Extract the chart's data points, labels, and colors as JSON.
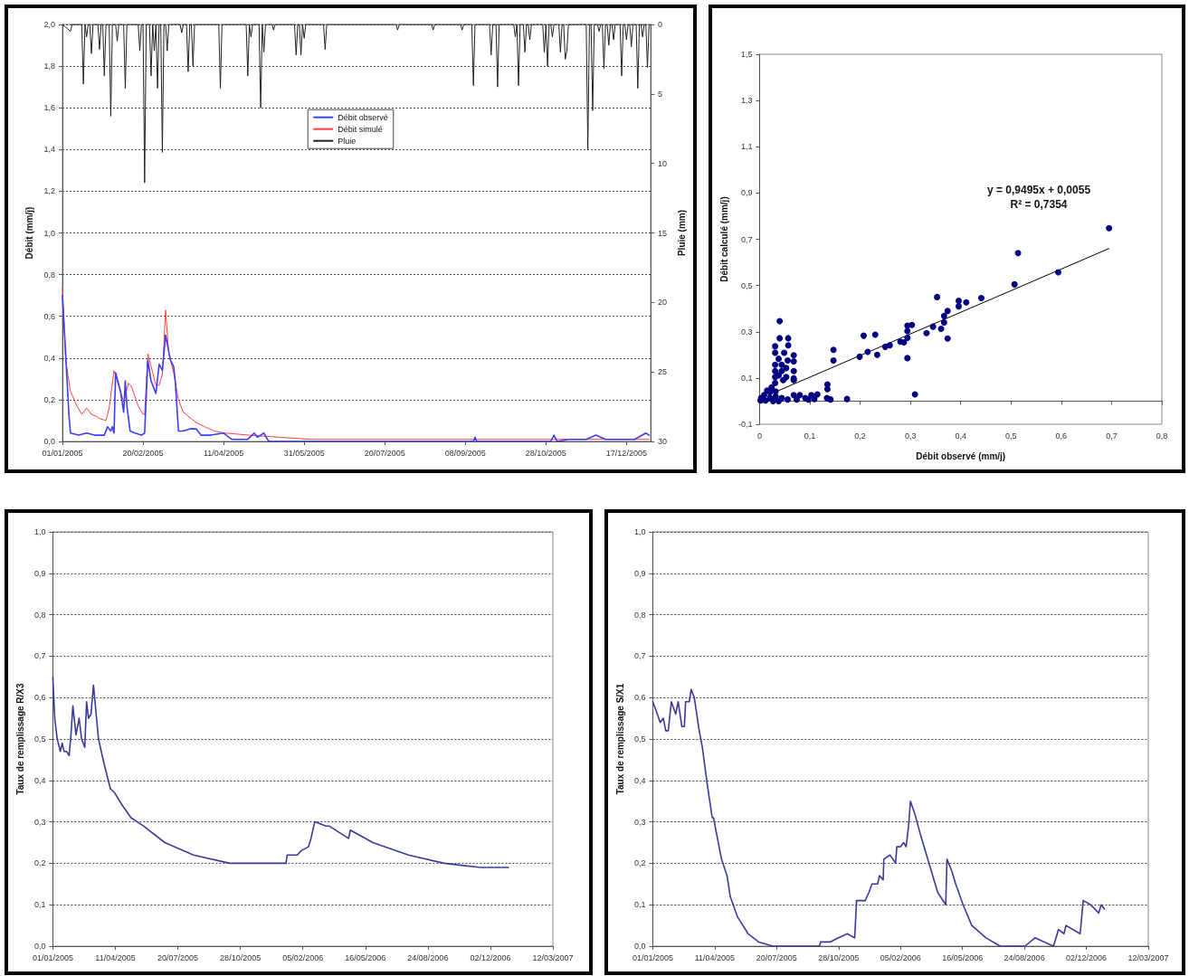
{
  "chart_data": [
    {
      "type": "line",
      "xlabel": null,
      "ylabel": "Débit (mm/j)",
      "y2label": "Pluie (mm)",
      "xlim": [
        "2005-01-01",
        "2006-01-01"
      ],
      "xticks": [
        {
          "value": "2005-01-01",
          "label": "01/01/2005"
        },
        {
          "value": "2005-02-20",
          "label": "20/02/2005"
        },
        {
          "value": "2005-04-11",
          "label": "11/04/2005"
        },
        {
          "value": "2005-05-31",
          "label": "31/05/2005"
        },
        {
          "value": "2005-07-20",
          "label": "20/07/2005"
        },
        {
          "value": "2005-09-08",
          "label": "08/09/2005"
        },
        {
          "value": "2005-10-28",
          "label": "28/10/2005"
        },
        {
          "value": "2005-12-17",
          "label": "17/12/2005"
        }
      ],
      "ylim": [
        0,
        2
      ],
      "yticks": [
        {
          "value": 0,
          "label": "0,0"
        },
        {
          "value": 0.2,
          "label": "0,2"
        },
        {
          "value": 0.4,
          "label": "0,4"
        },
        {
          "value": 0.6,
          "label": "0,6"
        },
        {
          "value": 0.8,
          "label": "0,8"
        },
        {
          "value": 1,
          "label": "1,0"
        },
        {
          "value": 1.2,
          "label": "1,2"
        },
        {
          "value": 1.4,
          "label": "1,4"
        },
        {
          "value": 1.6,
          "label": "1,6"
        },
        {
          "value": 1.8,
          "label": "1,8"
        },
        {
          "value": 2,
          "label": "2,0"
        }
      ],
      "y2lim": [
        30,
        0
      ],
      "y2ticks": [
        0,
        5,
        10,
        15,
        20,
        25,
        30
      ],
      "grid": "y",
      "legend": "top",
      "marker": "none",
      "series": [
        {
          "name": "Débit observé",
          "color": "#3c3cff",
          "x": [
            "2005-01-01",
            "2005-01-03",
            "2005-01-05",
            "2005-01-06",
            "2005-01-11",
            "2005-01-16",
            "2005-01-21",
            "2005-01-27",
            "2005-01-29",
            "2005-01-31",
            "2005-02-01",
            "2005-02-02",
            "2005-02-03",
            "2005-02-06",
            "2005-02-08",
            "2005-02-09",
            "2005-02-10",
            "2005-02-12",
            "2005-02-15",
            "2005-02-19",
            "2005-02-21",
            "2005-02-23",
            "2005-02-25",
            "2005-02-28",
            "2005-03-02",
            "2005-03-04",
            "2005-03-06",
            "2005-03-09",
            "2005-03-11",
            "2005-03-12",
            "2005-03-14",
            "2005-03-17",
            "2005-03-21",
            "2005-03-25",
            "2005-03-28",
            "2005-04-03",
            "2005-04-11",
            "2005-04-16",
            "2005-04-26",
            "2005-04-30",
            "2005-05-02",
            "2005-05-06",
            "2005-05-09",
            "2005-09-13",
            "2005-09-14",
            "2005-09-15",
            "2005-10-31",
            "2005-11-02",
            "2005-11-04",
            "2005-11-11",
            "2005-11-22",
            "2005-11-28",
            "2005-12-04",
            "2005-12-22",
            "2005-12-29",
            "2005-12-31"
          ],
          "values": [
            0.7,
            0.42,
            0.13,
            0.04,
            0.03,
            0.04,
            0.03,
            0.03,
            0.07,
            0.05,
            0.07,
            0.04,
            0.33,
            0.24,
            0.14,
            0.29,
            0.17,
            0.05,
            0.04,
            0.03,
            0.04,
            0.39,
            0.29,
            0.23,
            0.37,
            0.34,
            0.51,
            0.39,
            0.36,
            0.29,
            0.05,
            0.05,
            0.06,
            0.06,
            0.03,
            0.03,
            0.04,
            0.01,
            0.01,
            0.04,
            0.02,
            0.04,
            0,
            0,
            0.02,
            0,
            0,
            0.03,
            0,
            0.01,
            0.01,
            0.03,
            0.01,
            0.01,
            0.04,
            0.03
          ]
        },
        {
          "name": "Débit simulé",
          "color": "#ff4040",
          "x": [
            "2005-01-01",
            "2005-01-03",
            "2005-01-06",
            "2005-01-10",
            "2005-01-13",
            "2005-01-16",
            "2005-01-19",
            "2005-01-22",
            "2005-01-24",
            "2005-01-28",
            "2005-01-30",
            "2005-02-02",
            "2005-02-08",
            "2005-02-11",
            "2005-02-13",
            "2005-02-17",
            "2005-02-20",
            "2005-02-21",
            "2005-02-23",
            "2005-02-26",
            "2005-02-28",
            "2005-03-02",
            "2005-03-04",
            "2005-03-06",
            "2005-03-08",
            "2005-03-11",
            "2005-03-14",
            "2005-03-17",
            "2005-03-25",
            "2005-04-05",
            "2005-04-12",
            "2005-04-27",
            "2005-05-16",
            "2005-06-04",
            "2005-07-20",
            "2005-12-31"
          ],
          "values": [
            0.74,
            0.39,
            0.24,
            0.17,
            0.13,
            0.16,
            0.13,
            0.12,
            0.11,
            0.1,
            0.16,
            0.34,
            0.19,
            0.28,
            0.26,
            0.17,
            0.13,
            0.13,
            0.42,
            0.33,
            0.27,
            0.27,
            0.32,
            0.63,
            0.42,
            0.33,
            0.2,
            0.14,
            0.09,
            0.05,
            0.04,
            0.03,
            0.02,
            0.01,
            0.01,
            0.01
          ]
        },
        {
          "name": "Pluie",
          "color": "#222222",
          "axis": "y2",
          "x": [
            "2005-01-01",
            "2005-01-06",
            "2005-01-07",
            "2005-01-13",
            "2005-01-14",
            "2005-01-15",
            "2005-01-16",
            "2005-01-17",
            "2005-01-18",
            "2005-01-19",
            "2005-01-20",
            "2005-01-23",
            "2005-01-24",
            "2005-01-25",
            "2005-01-26",
            "2005-01-27",
            "2005-01-28",
            "2005-01-30",
            "2005-01-31",
            "2005-02-01",
            "2005-02-03",
            "2005-02-04",
            "2005-02-05",
            "2005-02-08",
            "2005-02-09",
            "2005-02-10",
            "2005-02-17",
            "2005-02-18",
            "2005-02-19",
            "2005-02-20",
            "2005-02-21",
            "2005-02-22",
            "2005-02-24",
            "2005-02-25",
            "2005-02-26",
            "2005-02-27",
            "2005-02-28",
            "2005-03-01",
            "2005-03-02",
            "2005-03-03",
            "2005-03-04",
            "2005-03-05",
            "2005-03-06",
            "2005-03-07",
            "2005-03-08",
            "2005-03-15",
            "2005-03-16",
            "2005-03-17",
            "2005-03-19",
            "2005-03-20",
            "2005-03-21",
            "2005-03-22",
            "2005-03-23",
            "2005-03-24",
            "2005-04-08",
            "2005-04-09",
            "2005-04-10",
            "2005-04-25",
            "2005-04-26",
            "2005-04-27",
            "2005-04-28",
            "2005-04-29",
            "2005-05-03",
            "2005-05-04",
            "2005-05-05",
            "2005-05-06",
            "2005-05-07",
            "2005-05-11",
            "2005-05-12",
            "2005-05-13",
            "2005-05-25",
            "2005-05-26",
            "2005-05-27",
            "2005-05-28",
            "2005-05-29",
            "2005-05-30",
            "2005-05-31",
            "2005-06-01",
            "2005-06-12",
            "2005-06-13",
            "2005-06-14",
            "2005-07-27",
            "2005-07-28",
            "2005-07-29",
            "2005-08-18",
            "2005-08-19",
            "2005-08-20",
            "2005-09-05",
            "2005-09-06",
            "2005-09-07",
            "2005-09-12",
            "2005-09-13",
            "2005-09-14",
            "2005-09-23",
            "2005-09-24",
            "2005-09-25",
            "2005-09-27",
            "2005-09-28",
            "2005-09-29",
            "2005-10-08",
            "2005-10-09",
            "2005-10-10",
            "2005-10-11",
            "2005-10-12",
            "2005-10-14",
            "2005-10-15",
            "2005-10-16",
            "2005-10-17",
            "2005-10-18",
            "2005-10-19",
            "2005-10-26",
            "2005-10-27",
            "2005-10-28",
            "2005-10-29",
            "2005-10-30",
            "2005-10-31",
            "2005-11-01",
            "2005-11-02",
            "2005-11-05",
            "2005-11-06",
            "2005-11-07",
            "2005-11-08",
            "2005-11-09",
            "2005-11-10",
            "2005-11-11",
            "2005-11-22",
            "2005-11-23",
            "2005-11-24",
            "2005-11-25",
            "2005-11-26",
            "2005-11-27",
            "2005-11-29",
            "2005-11-30",
            "2005-12-01",
            "2005-12-02",
            "2005-12-03",
            "2005-12-04",
            "2005-12-05",
            "2005-12-06",
            "2005-12-07",
            "2005-12-08",
            "2005-12-09",
            "2005-12-10",
            "2005-12-13",
            "2005-12-14",
            "2005-12-15",
            "2005-12-16",
            "2005-12-17",
            "2005-12-18",
            "2005-12-19",
            "2005-12-20",
            "2005-12-21",
            "2005-12-23",
            "2005-12-24",
            "2005-12-25",
            "2005-12-26",
            "2005-12-27",
            "2005-12-28",
            "2005-12-29",
            "2005-12-30",
            "2005-12-31"
          ],
          "values": [
            0,
            0.5,
            0,
            0,
            4.3,
            0,
            0.9,
            0,
            0,
            2.1,
            0,
            0,
            1.8,
            0,
            0,
            3.7,
            0,
            0,
            6.6,
            0,
            0,
            1.2,
            0,
            0,
            4.6,
            0,
            0,
            1.9,
            0,
            0,
            11.4,
            0,
            0,
            3.7,
            0,
            1.9,
            0,
            4.6,
            0,
            0,
            9.2,
            0,
            0,
            1.9,
            0,
            0,
            0.6,
            0,
            0,
            3.4,
            0,
            0,
            3,
            0,
            0,
            4.6,
            0,
            0,
            3.7,
            0,
            0.9,
            0,
            0,
            6,
            0,
            2,
            0,
            0,
            0.4,
            0,
            0,
            2.2,
            0,
            0,
            2.2,
            0,
            1,
            0,
            0,
            1.8,
            0,
            0,
            0.4,
            0,
            0,
            0.4,
            0,
            0,
            0.4,
            0,
            0,
            4.4,
            0,
            0,
            2.2,
            0,
            0,
            4.5,
            0,
            0,
            0.9,
            0,
            4.4,
            0,
            0,
            2,
            0,
            0,
            1.1,
            0,
            0,
            2,
            0,
            3,
            0,
            0,
            0.9,
            0,
            0,
            2,
            0,
            0,
            2.5,
            1.9,
            0,
            0,
            9,
            0,
            0,
            6.2,
            0,
            0,
            0.5,
            0,
            0,
            3.2,
            0,
            0,
            1.5,
            0,
            0,
            1.1,
            0,
            0,
            3.7,
            0,
            0,
            1.1,
            0,
            0,
            1.6,
            0,
            0,
            4.6,
            0,
            0,
            0.9,
            0,
            0,
            3.1,
            0
          ]
        }
      ]
    },
    {
      "type": "scatter",
      "xlabel": "Débit observé (mm/j)",
      "ylabel": "Débit calculé (mm/j)",
      "annotations": [
        "y = 0,9495x + 0,0055",
        "R² = 0,7354"
      ],
      "xlim": [
        0,
        0.8
      ],
      "xticks": [
        0,
        {
          "value": 0.1,
          "label": "0,1"
        },
        {
          "value": 0.2,
          "label": "0,2"
        },
        {
          "value": 0.3,
          "label": "0,3"
        },
        {
          "value": 0.4,
          "label": "0,4"
        },
        {
          "value": 0.5,
          "label": "0,5"
        },
        {
          "value": 0.6,
          "label": "0,6"
        },
        {
          "value": 0.7,
          "label": "0,7"
        },
        {
          "value": 0.8,
          "label": "0,8"
        }
      ],
      "ylim": [
        -0.1,
        1.5
      ],
      "yticks": [
        {
          "value": -0.1,
          "label": "-0,1"
        },
        {
          "value": 0.1,
          "label": "0,1"
        },
        {
          "value": 0.3,
          "label": "0,3"
        },
        {
          "value": 0.5,
          "label": "0,5"
        },
        {
          "value": 0.7,
          "label": "0,7"
        },
        {
          "value": 0.9,
          "label": "0,9"
        },
        {
          "value": 1.1,
          "label": "1,1"
        },
        {
          "value": 1.3,
          "label": "1,3"
        },
        {
          "value": 1.5,
          "label": "1,5"
        }
      ],
      "series": [
        {
          "marker": "circle",
          "color": "#000080",
          "x": [
            0.695,
            0.514,
            0.594,
            0.507,
            0.353,
            0.396,
            0.396,
            0.411,
            0.441,
            0.374,
            0.367,
            0.367,
            0.361,
            0.345,
            0.374,
            0.332,
            0.303,
            0.294,
            0.294,
            0.294,
            0.287,
            0.28,
            0.259,
            0.25,
            0.294,
            0.309,
            0.23,
            0.207,
            0.215,
            0.234,
            0.199,
            0.147,
            0.147,
            0.135,
            0.135,
            0.134,
            0.141,
            0.174,
            0.04,
            0.04,
            0.057,
            0.057,
            0.031,
            0.031,
            0.049,
            0.068,
            0.068,
            0.038,
            0.056,
            0.031,
            0.031,
            0.031,
            0.031,
            0.044,
            0.044,
            0.053,
            0.053,
            0.068,
            0.068,
            0.068,
            0.038,
            0.047,
            0.024,
            0.015,
            0.009,
            0.003,
            0.006,
            0.021,
            0.032,
            0.044,
            0.056,
            0.068,
            0.08,
            0.091,
            0.103,
            0.115,
            0.074,
            0.032,
            0.021,
            0.002,
            0.012,
            0.027,
            0.038,
            0.109,
            0.097
          ],
          "values": [
            0.748,
            0.64,
            0.557,
            0.505,
            0.45,
            0.434,
            0.41,
            0.427,
            0.446,
            0.39,
            0.368,
            0.34,
            0.313,
            0.322,
            0.271,
            0.294,
            0.329,
            0.326,
            0.303,
            0.274,
            0.254,
            0.257,
            0.241,
            0.235,
            0.186,
            0.029,
            0.287,
            0.283,
            0.213,
            0.2,
            0.192,
            0.222,
            0.176,
            0.072,
            0.052,
            0.013,
            0.007,
            0.009,
            0.346,
            0.272,
            0.272,
            0.241,
            0.237,
            0.209,
            0.209,
            0.198,
            0.172,
            0.183,
            0.176,
            0.157,
            0.13,
            0.104,
            0.078,
            0.157,
            0.13,
            0.143,
            0.104,
            0.13,
            0.098,
            0.091,
            0.111,
            0.091,
            0.059,
            0.046,
            0.026,
            0.013,
            0.007,
            0.013,
            0.02,
            0.013,
            0.007,
            0.026,
            0.026,
            0.013,
            0.026,
            0.029,
            0.007,
            0.042,
            0.039,
            0.003,
            0.003,
            0,
            0,
            0.009,
            0.007
          ]
        },
        {
          "type": "line",
          "marker": "none",
          "color": "#000000",
          "x": [
            0,
            0.695
          ],
          "values": [
            0.01,
            0.66
          ]
        }
      ]
    },
    {
      "type": "line",
      "ylabel": "Taux de remplissage R/X3",
      "color": "#3a3a9a",
      "marker": "none",
      "grid": "y",
      "xlim": [
        "2005-01-01",
        "2007-03-12"
      ],
      "xticks": [
        {
          "value": "2005-01-01",
          "label": "01/01/2005"
        },
        {
          "value": "2005-04-11",
          "label": "11/04/2005"
        },
        {
          "value": "2005-07-20",
          "label": "20/07/2005"
        },
        {
          "value": "2005-10-28",
          "label": "28/10/2005"
        },
        {
          "value": "2006-02-05",
          "label": "05/02/2006"
        },
        {
          "value": "2006-05-16",
          "label": "16/05/2006"
        },
        {
          "value": "2006-08-24",
          "label": "24/08/2006"
        },
        {
          "value": "2006-12-02",
          "label": "02/12/2006"
        },
        {
          "value": "2007-03-12",
          "label": "12/03/2007"
        }
      ],
      "ylim": [
        0,
        1
      ],
      "yticks": [
        {
          "value": 0,
          "label": "0,0"
        },
        {
          "value": 0.1,
          "label": "0,1"
        },
        {
          "value": 0.2,
          "label": "0,2"
        },
        {
          "value": 0.3,
          "label": "0,3"
        },
        {
          "value": 0.4,
          "label": "0,4"
        },
        {
          "value": 0.5,
          "label": "0,5"
        },
        {
          "value": 0.6,
          "label": "0,6"
        },
        {
          "value": 0.7,
          "label": "0,7"
        },
        {
          "value": 0.8,
          "label": "0,8"
        },
        {
          "value": 0.9,
          "label": "0,9"
        },
        {
          "value": 1,
          "label": "1,0"
        }
      ],
      "x": [
        "2005-01-01",
        "2005-01-04",
        "2005-01-08",
        "2005-01-13",
        "2005-01-16",
        "2005-01-19",
        "2005-01-23",
        "2005-01-27",
        "2005-01-30",
        "2005-02-02",
        "2005-02-07",
        "2005-02-12",
        "2005-02-16",
        "2005-02-21",
        "2005-02-24",
        "2005-02-27",
        "2005-03-03",
        "2005-03-07",
        "2005-03-15",
        "2005-03-24",
        "2005-04-03",
        "2005-04-10",
        "2005-04-22",
        "2005-05-06",
        "2005-05-26",
        "2005-06-29",
        "2005-08-14",
        "2005-10-11",
        "2005-11-25",
        "2005-12-18",
        "2006-01-09",
        "2006-01-11",
        "2006-01-27",
        "2006-02-02",
        "2006-02-14",
        "2006-02-18",
        "2006-02-24",
        "2006-03-14",
        "2006-03-19",
        "2006-04-19",
        "2006-04-22",
        "2006-05-28",
        "2006-07-24",
        "2006-09-19",
        "2006-11-16",
        "2006-12-31"
      ],
      "values": [
        0.65,
        0.55,
        0.5,
        0.47,
        0.49,
        0.47,
        0.47,
        0.46,
        0.51,
        0.58,
        0.51,
        0.55,
        0.5,
        0.48,
        0.59,
        0.55,
        0.56,
        0.63,
        0.5,
        0.44,
        0.38,
        0.37,
        0.34,
        0.31,
        0.29,
        0.25,
        0.22,
        0.2,
        0.2,
        0.2,
        0.2,
        0.22,
        0.22,
        0.23,
        0.24,
        0.26,
        0.3,
        0.29,
        0.29,
        0.26,
        0.28,
        0.25,
        0.22,
        0.2,
        0.19,
        0.19
      ]
    },
    {
      "type": "line",
      "ylabel": "Taux de remplissage S/X1",
      "color": "#3a3a9a",
      "marker": "none",
      "grid": "y",
      "xlim": [
        "2005-01-01",
        "2007-03-12"
      ],
      "xticks": [
        {
          "value": "2005-01-01",
          "label": "01/01/2005"
        },
        {
          "value": "2005-04-11",
          "label": "11/04/2005"
        },
        {
          "value": "2005-07-20",
          "label": "20/07/2005"
        },
        {
          "value": "2005-10-28",
          "label": "28/10/2005"
        },
        {
          "value": "2006-02-05",
          "label": "05/02/2006"
        },
        {
          "value": "2006-05-16",
          "label": "16/05/2006"
        },
        {
          "value": "2006-08-24",
          "label": "24/08/2006"
        },
        {
          "value": "2006-12-02",
          "label": "02/12/2006"
        },
        {
          "value": "2007-03-12",
          "label": "12/03/2007"
        }
      ],
      "ylim": [
        0,
        1
      ],
      "yticks": [
        {
          "value": 0,
          "label": "0,0"
        },
        {
          "value": 0.1,
          "label": "0,1"
        },
        {
          "value": 0.2,
          "label": "0,2"
        },
        {
          "value": 0.3,
          "label": "0,3"
        },
        {
          "value": 0.4,
          "label": "0,4"
        },
        {
          "value": 0.5,
          "label": "0,5"
        },
        {
          "value": 0.6,
          "label": "0,6"
        },
        {
          "value": 0.7,
          "label": "0,7"
        },
        {
          "value": 0.8,
          "label": "0,8"
        },
        {
          "value": 0.9,
          "label": "0,9"
        },
        {
          "value": 1,
          "label": "1,0"
        }
      ],
      "x": [
        "2005-01-01",
        "2005-01-06",
        "2005-01-13",
        "2005-01-18",
        "2005-01-22",
        "2005-01-26",
        "2005-01-31",
        "2005-02-07",
        "2005-02-11",
        "2005-02-17",
        "2005-02-21",
        "2005-02-23",
        "2005-03-01",
        "2005-03-04",
        "2005-03-09",
        "2005-03-17",
        "2005-03-22",
        "2005-03-30",
        "2005-04-07",
        "2005-04-09",
        "2005-04-22",
        "2005-05-01",
        "2005-05-06",
        "2005-05-18",
        "2005-06-04",
        "2005-06-21",
        "2005-07-14",
        "2005-07-26",
        "2005-09-12",
        "2005-09-15",
        "2005-09-27",
        "2005-09-29",
        "2005-10-14",
        "2005-10-28",
        "2005-11-11",
        "2005-11-23",
        "2005-11-26",
        "2005-12-10",
        "2005-12-16",
        "2005-12-21",
        "2005-12-30",
        "2006-01-02",
        "2006-01-08",
        "2006-01-09",
        "2006-01-19",
        "2006-01-28",
        "2006-01-30",
        "2006-02-05",
        "2006-02-10",
        "2006-02-14",
        "2006-02-18",
        "2006-02-21",
        "2006-02-28",
        "2006-03-09",
        "2006-03-23",
        "2006-04-06",
        "2006-04-19",
        "2006-04-21",
        "2006-04-29",
        "2006-05-05",
        "2006-05-17",
        "2006-05-31",
        "2006-06-23",
        "2006-07-16",
        "2006-08-25",
        "2006-09-10",
        "2006-10-10",
        "2006-10-18",
        "2006-10-27",
        "2006-10-30",
        "2006-11-22",
        "2006-11-27",
        "2006-12-09",
        "2006-12-22",
        "2006-12-26",
        "2006-12-31"
      ],
      "values": [
        0.59,
        0.57,
        0.54,
        0.55,
        0.52,
        0.52,
        0.59,
        0.56,
        0.59,
        0.53,
        0.53,
        0.59,
        0.59,
        0.62,
        0.6,
        0.52,
        0.48,
        0.39,
        0.31,
        0.31,
        0.21,
        0.17,
        0.12,
        0.07,
        0.03,
        0.01,
        0,
        0,
        0,
        0,
        0,
        0.01,
        0.01,
        0.02,
        0.03,
        0.02,
        0.11,
        0.11,
        0.13,
        0.15,
        0.15,
        0.17,
        0.16,
        0.21,
        0.22,
        0.2,
        0.24,
        0.24,
        0.25,
        0.24,
        0.29,
        0.35,
        0.32,
        0.27,
        0.2,
        0.13,
        0.1,
        0.21,
        0.18,
        0.15,
        0.1,
        0.05,
        0.02,
        0,
        0,
        0.02,
        0,
        0.04,
        0.03,
        0.05,
        0.03,
        0.11,
        0.1,
        0.08,
        0.1,
        0.09
      ]
    }
  ]
}
